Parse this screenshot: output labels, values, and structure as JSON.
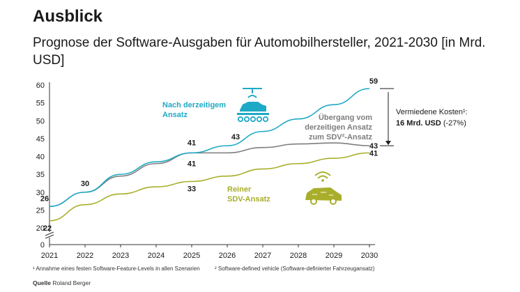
{
  "header": {
    "title": "Ausblick",
    "subtitle": "Prognose der Software-Ausgaben für Automobilhersteller, 2021-2030 [in Mrd. USD]"
  },
  "chart_data": {
    "type": "line",
    "x": [
      2021,
      2022,
      2023,
      2024,
      2025,
      2026,
      2027,
      2028,
      2029,
      2030
    ],
    "ylim": [
      0,
      60
    ],
    "yticks": [
      0,
      20,
      25,
      30,
      35,
      40,
      45,
      50,
      55,
      60
    ],
    "axis_break": true,
    "grid": false,
    "series": [
      {
        "name": "Nach derzeitigem Ansatz",
        "color": "#1ea9c6",
        "values": [
          26,
          30,
          35,
          38.5,
          41,
          43,
          47,
          50.5,
          54.5,
          59
        ]
      },
      {
        "name": "Übergang vom derzeitigen Ansatz zum SDV²-Ansatz",
        "color": "#7d7d7d",
        "values": [
          26,
          30,
          34.5,
          38,
          41,
          41,
          42.5,
          43.5,
          43.8,
          43
        ]
      },
      {
        "name": "Reiner SDV-Ansatz",
        "color": "#a8ae2a",
        "values": [
          22,
          26.5,
          29.5,
          31.5,
          33,
          34.5,
          36.5,
          38,
          39.5,
          41
        ]
      }
    ],
    "point_labels": [
      {
        "x": 2021,
        "y": 26,
        "text": "26"
      },
      {
        "x": 2021,
        "y": 22,
        "text": "22"
      },
      {
        "x": 2022,
        "y": 30,
        "text": "30"
      },
      {
        "x": 2025,
        "y": 41,
        "text": "41",
        "pos": "above"
      },
      {
        "x": 2025,
        "y": 41,
        "text": "41",
        "pos": "below"
      },
      {
        "x": 2025,
        "y": 33,
        "text": "33"
      },
      {
        "x": 2026,
        "y": 43,
        "text": "43"
      },
      {
        "x": 2030,
        "y": 59,
        "text": "59"
      },
      {
        "x": 2030,
        "y": 43,
        "text": "43"
      },
      {
        "x": 2030,
        "y": 41,
        "text": "41"
      }
    ],
    "series_labels": [
      {
        "series": 0,
        "lines": [
          "Nach derzeitigem",
          "Ansatz"
        ],
        "color": "#1ea9c6"
      },
      {
        "series": 1,
        "lines": [
          "Übergang vom",
          "derzeitigen Ansatz",
          "zum SDV²-Ansatz"
        ],
        "color": "#7d7d7d"
      },
      {
        "series": 2,
        "lines": [
          "Reiner",
          "SDV-Ansatz"
        ],
        "color": "#a8ae2a"
      }
    ],
    "annotation": {
      "line1": "Vermiedene Kosten¹:",
      "line2_bold": "16 Mrd. USD",
      "line2_rest": " (-27%)"
    }
  },
  "footnotes": {
    "note1": "¹ Annahme eines festen Software-Feature-Levels in allen Szenarien",
    "note2": "² Software-defined vehicle (Software-definierter Fahrzeugansatz)"
  },
  "source": {
    "label": "Quelle",
    "text": " Roland Berger"
  },
  "icons": {
    "factory": "conveyor-car-icon",
    "connected_car": "connected-car-icon"
  }
}
